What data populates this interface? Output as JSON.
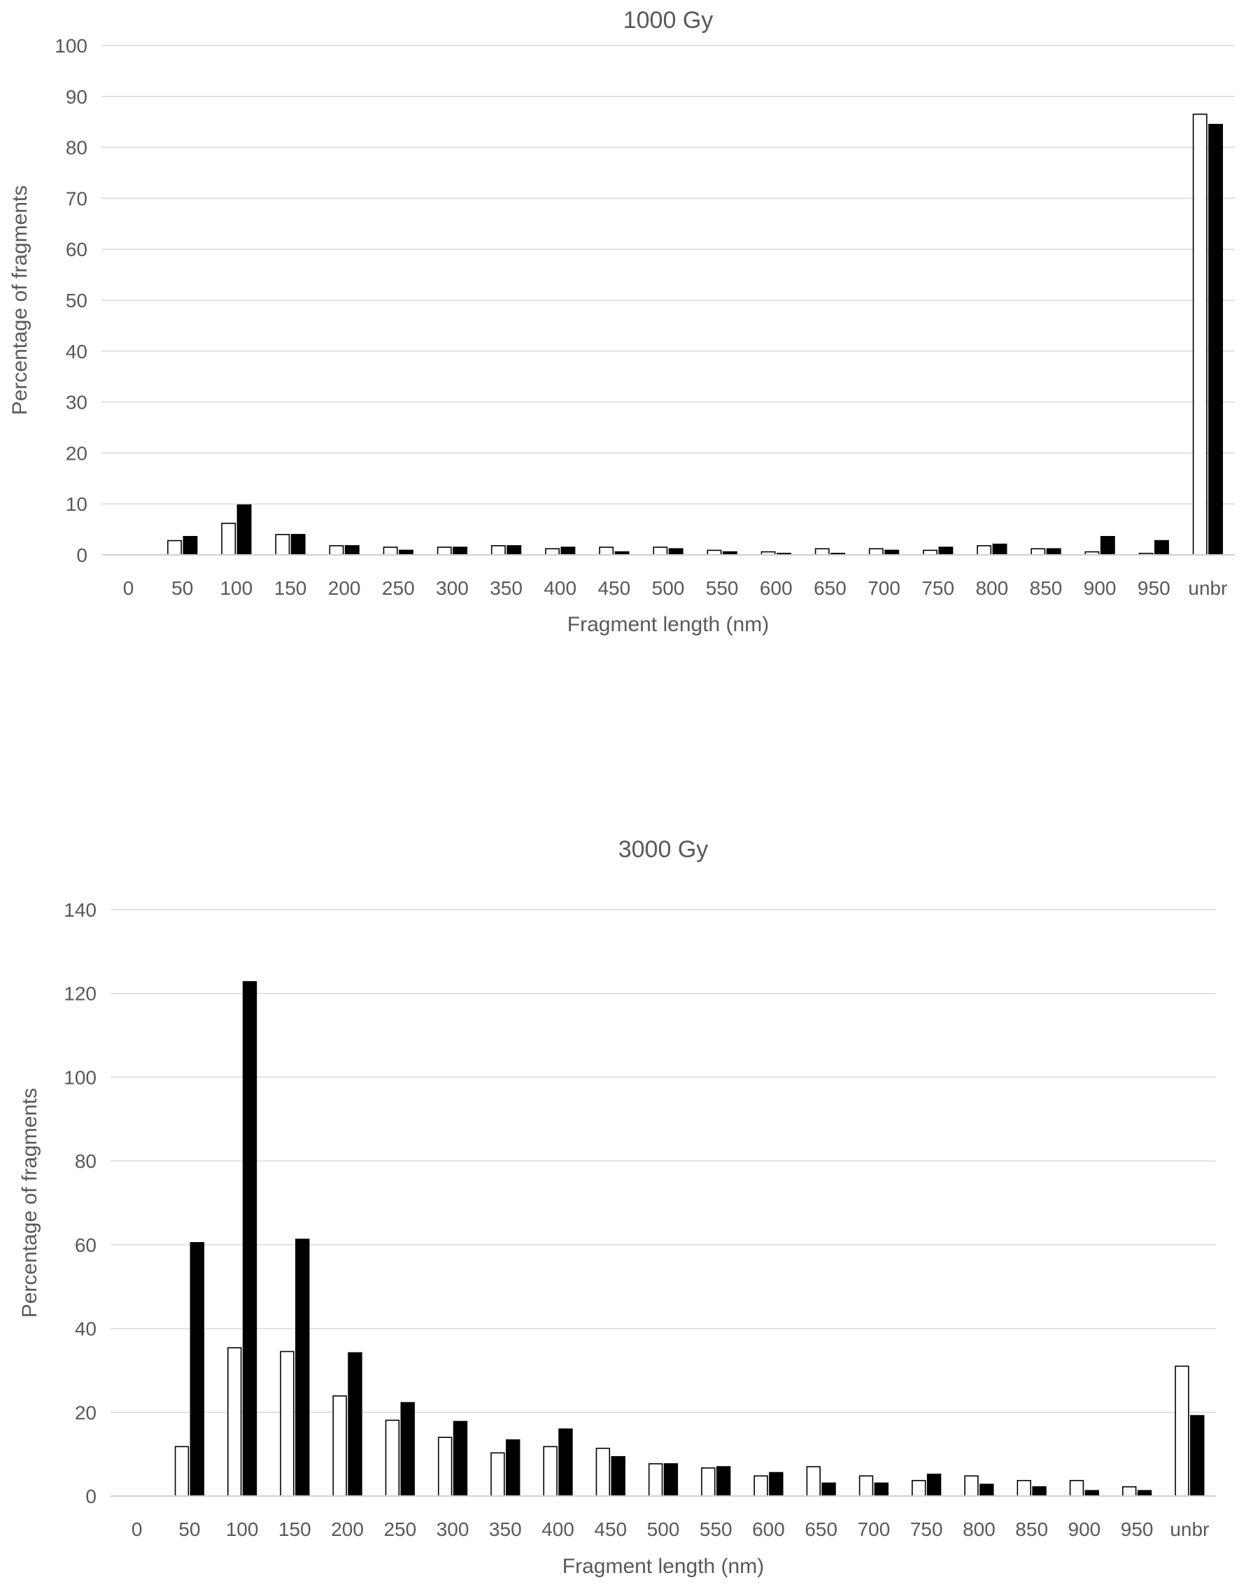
{
  "chart_data": [
    {
      "type": "bar",
      "title": "1000 Gy",
      "xlabel": "Fragment length (nm)",
      "ylabel": "Percentage of fragments",
      "ylim": [
        0,
        100
      ],
      "yticks": [
        0,
        10,
        20,
        30,
        40,
        50,
        60,
        70,
        80,
        90,
        100
      ],
      "grid": true,
      "categories": [
        "0",
        "50",
        "100",
        "150",
        "200",
        "250",
        "300",
        "350",
        "400",
        "450",
        "500",
        "550",
        "600",
        "650",
        "700",
        "750",
        "800",
        "850",
        "900",
        "950",
        "unbr"
      ],
      "series": [
        {
          "color": "#ffffff",
          "values": [
            0,
            2.8,
            6.2,
            4.0,
            1.8,
            1.5,
            1.5,
            1.8,
            1.2,
            1.5,
            1.5,
            0.9,
            0.6,
            1.2,
            1.2,
            0.9,
            1.8,
            1.2,
            0.6,
            0.3,
            86.5
          ]
        },
        {
          "color": "#000000",
          "values": [
            0,
            3.6,
            9.8,
            4.0,
            1.8,
            0.9,
            1.5,
            1.8,
            1.5,
            0.6,
            1.2,
            0.6,
            0.3,
            0.3,
            0.9,
            1.5,
            2.1,
            1.2,
            3.6,
            2.8,
            84.5
          ]
        }
      ]
    },
    {
      "type": "bar",
      "title": "3000 Gy",
      "xlabel": "Fragment length (nm)",
      "ylabel": "Percentage of fragments",
      "ylim": [
        0,
        140
      ],
      "yticks": [
        0,
        20,
        40,
        60,
        80,
        100,
        120,
        140
      ],
      "grid": true,
      "categories": [
        "0",
        "50",
        "100",
        "150",
        "200",
        "250",
        "300",
        "350",
        "400",
        "450",
        "500",
        "550",
        "600",
        "650",
        "700",
        "750",
        "800",
        "850",
        "900",
        "950",
        "unbr"
      ],
      "series": [
        {
          "color": "#ffffff",
          "values": [
            0,
            11.8,
            35.4,
            34.5,
            23.9,
            18.1,
            14.0,
            10.3,
            11.8,
            11.4,
            7.7,
            6.7,
            4.8,
            7.0,
            4.8,
            3.7,
            4.8,
            3.7,
            3.7,
            2.2,
            31.0
          ]
        },
        {
          "color": "#000000",
          "values": [
            0,
            60.5,
            122.8,
            61.3,
            34.2,
            22.3,
            17.8,
            13.4,
            16.0,
            9.4,
            7.7,
            7.0,
            5.6,
            3.1,
            3.1,
            5.2,
            2.8,
            2.2,
            1.3,
            1.3,
            19.2
          ]
        }
      ]
    }
  ]
}
